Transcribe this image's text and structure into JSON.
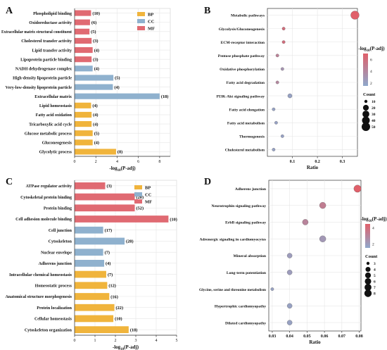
{
  "colors": {
    "BP": "#F0B43C",
    "CC": "#8FB1CE",
    "MF": "#E06A72",
    "grid": "#e6e6e6",
    "axis": "#333333",
    "gradient_high": "#E0606A",
    "gradient_low": "#8FA8CC"
  },
  "chart_data": [
    {
      "panel": "A",
      "type": "bar",
      "orientation": "horizontal",
      "xlabel": "-log10(P-adj)",
      "xlabel_sub": "10",
      "xlim": [
        0,
        9
      ],
      "xticks": [
        0,
        2,
        4,
        6,
        8
      ],
      "legend": {
        "position": "top-right",
        "entries": [
          "BP",
          "CC",
          "MF"
        ]
      },
      "grid": true,
      "bars": [
        {
          "term": "Phospholipid binding",
          "category": "MF",
          "value": 1.55,
          "count": "10"
        },
        {
          "term": "Oxidoreductase activity",
          "category": "MF",
          "value": 1.45,
          "count": "6"
        },
        {
          "term": "Extracellular matrix structural constituent",
          "category": "MF",
          "value": 1.4,
          "count": "5"
        },
        {
          "term": "Cholesterol transfer activity",
          "category": "MF",
          "value": 1.6,
          "count": "3"
        },
        {
          "term": "Lipid transfer activity",
          "category": "MF",
          "value": 1.7,
          "count": "4"
        },
        {
          "term": "Lipoprotein particle binding",
          "category": "MF",
          "value": 1.6,
          "count": "3"
        },
        {
          "term": "NADH dehydrogenase complex",
          "category": "CC",
          "value": 1.7,
          "count": "4"
        },
        {
          "term": "High-density lipoprotein particle",
          "category": "CC",
          "value": 3.65,
          "count": "5"
        },
        {
          "term": "Very-low-density lipoprotein particle",
          "category": "CC",
          "value": 3.6,
          "count": "4"
        },
        {
          "term": "Extracellular matrix",
          "category": "CC",
          "value": 8.0,
          "count": "18"
        },
        {
          "term": "Lipid homeostasis",
          "category": "BP",
          "value": 1.55,
          "count": "4"
        },
        {
          "term": "Fatty acid oxidation",
          "category": "BP",
          "value": 1.6,
          "count": "4"
        },
        {
          "term": "Tricarboxylic acid cycle",
          "category": "BP",
          "value": 1.6,
          "count": "4"
        },
        {
          "term": "Glucose metabolic process",
          "category": "BP",
          "value": 1.7,
          "count": "5"
        },
        {
          "term": "Gluconeogenesis",
          "category": "BP",
          "value": 1.7,
          "count": "4"
        },
        {
          "term": "Glycolytic process",
          "category": "BP",
          "value": 3.9,
          "count": "8"
        }
      ]
    },
    {
      "panel": "B",
      "type": "scatter",
      "xlabel": "Ratio",
      "xlim": [
        0,
        0.36
      ],
      "xticks": [
        0.1,
        0.2,
        0.3
      ],
      "grid": true,
      "color_legend": {
        "title": "-log10(P-adj)",
        "ticks": [
          2,
          4,
          6
        ],
        "range": [
          1.5,
          7
        ]
      },
      "size_legend": {
        "title": "Count",
        "values": [
          10,
          20,
          30,
          40,
          50
        ]
      },
      "points": [
        {
          "term": "Metabolic pathways",
          "ratio": 0.35,
          "count": 50,
          "neglogp": 7.0
        },
        {
          "term": "Glycolysis/Gluconeogenesis",
          "ratio": 0.065,
          "count": 9,
          "neglogp": 6.0
        },
        {
          "term": "ECM-receptor interaction",
          "ratio": 0.065,
          "count": 9,
          "neglogp": 6.0
        },
        {
          "term": "Pentose phosphate pathway",
          "ratio": 0.04,
          "count": 6,
          "neglogp": 4.5
        },
        {
          "term": "Oxidative phosphorylation",
          "ratio": 0.06,
          "count": 8,
          "neglogp": 3.0
        },
        {
          "term": "Fatty acid degradation",
          "ratio": 0.04,
          "count": 6,
          "neglogp": 4.0
        },
        {
          "term": "PI3K-Akt signaling pathway",
          "ratio": 0.09,
          "count": 12,
          "neglogp": 2.0
        },
        {
          "term": "Fatty acid elongation",
          "ratio": 0.025,
          "count": 4,
          "neglogp": 2.0
        },
        {
          "term": "Fatty acid metabolism",
          "ratio": 0.035,
          "count": 5,
          "neglogp": 2.0
        },
        {
          "term": "Thermogenesis",
          "ratio": 0.06,
          "count": 8,
          "neglogp": 2.0
        },
        {
          "term": "Cholesterol metabolism",
          "ratio": 0.025,
          "count": 4,
          "neglogp": 2.0
        }
      ]
    },
    {
      "panel": "C",
      "type": "bar",
      "orientation": "horizontal",
      "xlabel": "-log10(P-adj)",
      "xlabel_sub": "10",
      "xlim": [
        0,
        5
      ],
      "xticks": [
        0,
        1,
        2,
        3,
        4,
        5
      ],
      "legend": {
        "position": "top-right",
        "entries": [
          "BP",
          "CC",
          "MF"
        ]
      },
      "grid": true,
      "bars": [
        {
          "term": "ATPase regulator activity",
          "category": "MF",
          "value": 1.5,
          "count": "3"
        },
        {
          "term": "Cytoskeletal protein binding",
          "category": "MF",
          "value": 2.95,
          "count": "20"
        },
        {
          "term": "Protein binding",
          "category": "MF",
          "value": 2.95,
          "count": "52"
        },
        {
          "term": "Cell adhesion molecule binding",
          "category": "MF",
          "value": 4.6,
          "count": "10"
        },
        {
          "term": "Cell junction",
          "category": "CC",
          "value": 1.4,
          "count": "17"
        },
        {
          "term": "Cytoskeleton",
          "category": "CC",
          "value": 2.45,
          "count": "28"
        },
        {
          "term": "Nuclear envelope",
          "category": "CC",
          "value": 1.4,
          "count": "7"
        },
        {
          "term": "Adherens junction",
          "category": "CC",
          "value": 1.45,
          "count": "4"
        },
        {
          "term": "Intracellular chemical homeostasis",
          "category": "BP",
          "value": 1.55,
          "count": "7"
        },
        {
          "term": "Homeostatic process",
          "category": "BP",
          "value": 1.6,
          "count": "12"
        },
        {
          "term": "Anatomical structure morphogenesis",
          "category": "BP",
          "value": 1.7,
          "count": "16"
        },
        {
          "term": "Protein localization",
          "category": "BP",
          "value": 1.95,
          "count": "22"
        },
        {
          "term": "Cellular homeostasis",
          "category": "BP",
          "value": 1.9,
          "count": "10"
        },
        {
          "term": "Cytoskeleton organization",
          "category": "BP",
          "value": 2.65,
          "count": "18"
        }
      ]
    },
    {
      "panel": "D",
      "type": "scatter",
      "xlabel": "Ratio",
      "xlim": [
        0.028,
        0.081
      ],
      "xticks": [
        0.03,
        0.04,
        0.05,
        0.06,
        0.07,
        0.08
      ],
      "grid": true,
      "color_legend": {
        "title": "-log10(P-adj)",
        "ticks": [
          2,
          4
        ],
        "range": [
          1.5,
          4.5
        ]
      },
      "size_legend": {
        "title": "Count",
        "values": [
          3,
          4,
          5,
          6,
          7,
          8
        ]
      },
      "points": [
        {
          "term": "Adherens junction",
          "ratio": 0.079,
          "count": 8,
          "neglogp": 4.5
        },
        {
          "term": "Neurotrophin signaling pathway",
          "ratio": 0.059,
          "count": 6,
          "neglogp": 3.3
        },
        {
          "term": "ErbB signaling pathway",
          "ratio": 0.049,
          "count": 5,
          "neglogp": 3.0
        },
        {
          "term": "Adrenergic signaling in cardiomyocytes",
          "ratio": 0.059,
          "count": 6,
          "neglogp": 2.2
        },
        {
          "term": "Mineral absorption",
          "ratio": 0.04,
          "count": 4,
          "neglogp": 2.0
        },
        {
          "term": "Long-term potentiation",
          "ratio": 0.04,
          "count": 4,
          "neglogp": 2.0
        },
        {
          "term": "Glycine, serine and threonine metabolism",
          "ratio": 0.03,
          "count": 3,
          "neglogp": 1.8
        },
        {
          "term": "Hypertrophic cardiomyopathy",
          "ratio": 0.04,
          "count": 4,
          "neglogp": 1.8
        },
        {
          "term": "Dilated cardiomyopathy",
          "ratio": 0.04,
          "count": 4,
          "neglogp": 1.8
        }
      ]
    }
  ]
}
